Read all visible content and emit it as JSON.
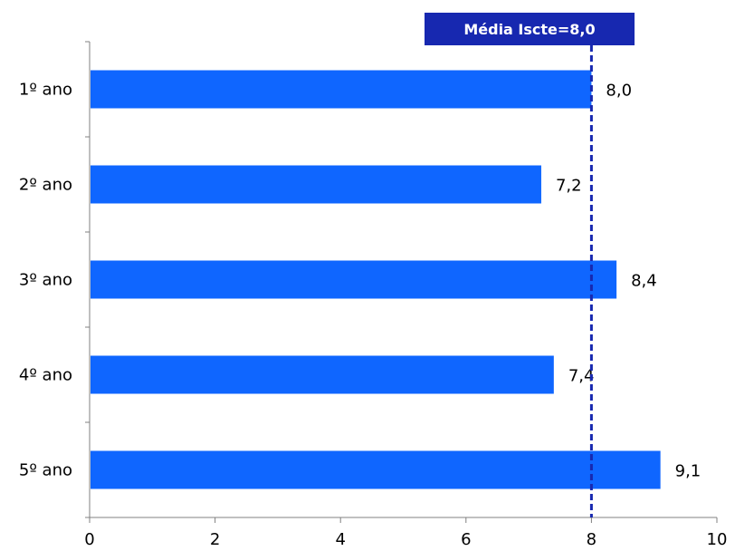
{
  "chart_data": {
    "type": "bar",
    "orientation": "horizontal",
    "categories": [
      "1º ano",
      "2º ano",
      "3º ano",
      "4º ano",
      "5º ano"
    ],
    "values": [
      8.0,
      7.2,
      8.4,
      7.4,
      9.1
    ],
    "value_labels": [
      "8,0",
      "7,2",
      "8,4",
      "7,4",
      "9,1"
    ],
    "xlim": [
      0,
      10
    ],
    "x_ticks": [
      0,
      2,
      4,
      6,
      8,
      10
    ],
    "grid": false,
    "legend": "none",
    "bar_color": "#0f66ff",
    "reference_line": {
      "value": 8.0,
      "label": "Média Iscte=8,0",
      "color": "#1728b0",
      "style": "dashed"
    }
  }
}
